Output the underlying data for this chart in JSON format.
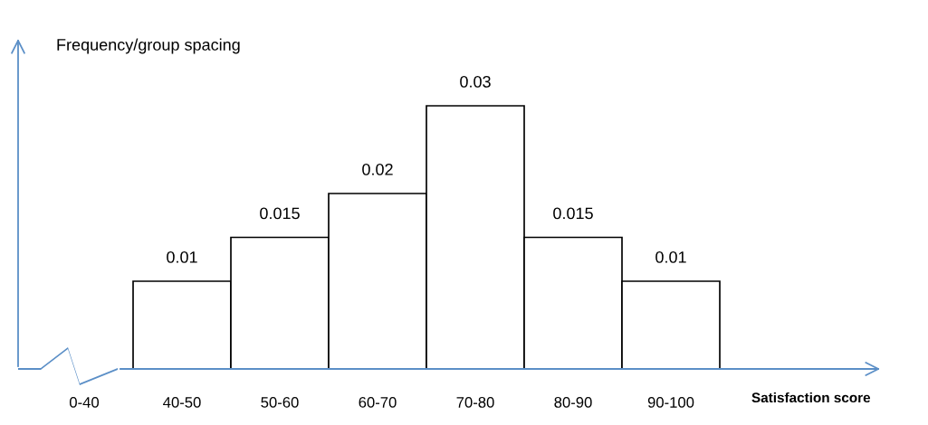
{
  "chart_data": {
    "type": "bar",
    "ylabel": "Frequency/group spacing",
    "xlabel": "Satisfaction score",
    "categories": [
      "0-40",
      "40-50",
      "50-60",
      "60-70",
      "70-80",
      "80-90",
      "90-100"
    ],
    "values": [
      null,
      0.01,
      0.015,
      0.02,
      0.03,
      0.015,
      0.01
    ],
    "color": "#ffffff",
    "data_labels": true,
    "tick_labels": "x",
    "grid": false,
    "legend": false
  }
}
